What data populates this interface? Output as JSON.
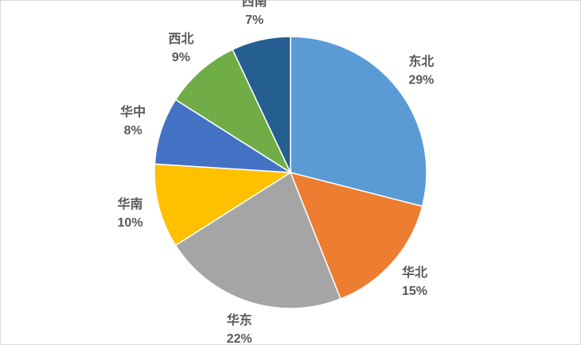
{
  "chart_data": {
    "type": "pie",
    "categories": [
      "东北",
      "华北",
      "华东",
      "华南",
      "华中",
      "西北",
      "西南"
    ],
    "values": [
      29,
      15,
      22,
      10,
      8,
      9,
      7
    ],
    "value_labels": [
      "29%",
      "15%",
      "22%",
      "10%",
      "8%",
      "9%",
      "7%"
    ],
    "colors": [
      "#5b9bd5",
      "#ed7d31",
      "#a5a5a5",
      "#ffc000",
      "#4472c4",
      "#70ad47",
      "#255e91"
    ]
  }
}
